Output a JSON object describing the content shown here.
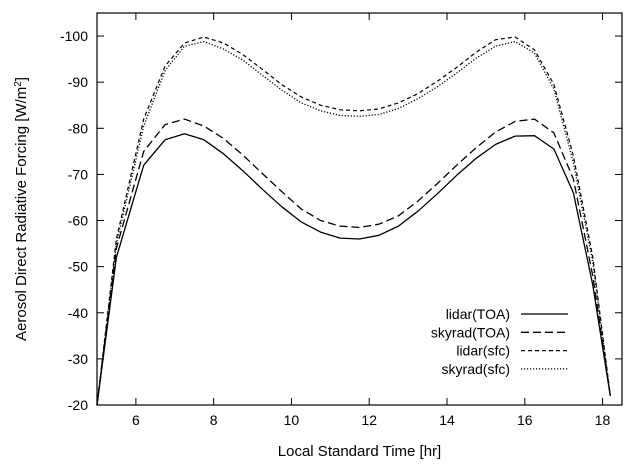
{
  "chart_data": {
    "type": "line",
    "title": "",
    "xlabel": "Local Standard Time [hr]",
    "ylabel": "Aerosol Direct Radiative Forcing [W/m",
    "ylabel_superscript": "2",
    "ylabel_suffix": "]",
    "xlim": [
      5,
      18.5
    ],
    "ylim": [
      -20,
      -105
    ],
    "x_ticks": [
      6,
      8,
      10,
      12,
      14,
      16,
      18
    ],
    "x_tick_labels": [
      "6",
      "8",
      "10",
      "12",
      "14",
      "16",
      "18"
    ],
    "y_ticks": [
      -20,
      -30,
      -40,
      -50,
      -60,
      -70,
      -80,
      -90,
      -100
    ],
    "y_tick_labels": [
      "-20",
      "-30",
      "-40",
      "-50",
      "-60",
      "-70",
      "-80",
      "-90",
      "-100"
    ],
    "legend_position": "bottom-right",
    "grid": false,
    "series": [
      {
        "name": "lidar(TOA)",
        "dash": "solid",
        "x": [
          5.0,
          5.5,
          6.2,
          6.75,
          7.25,
          7.75,
          8.25,
          8.75,
          9.25,
          9.75,
          10.25,
          10.75,
          11.25,
          11.75,
          12.25,
          12.75,
          13.25,
          13.75,
          14.25,
          14.75,
          15.25,
          15.75,
          16.25,
          16.75,
          17.25,
          17.75,
          18.2
        ],
        "y": [
          -20,
          -52,
          -72,
          -77.5,
          -78.8,
          -77.5,
          -74.5,
          -70.8,
          -66.8,
          -63,
          -59.7,
          -57.5,
          -56.2,
          -56,
          -56.8,
          -58.8,
          -62,
          -65.8,
          -69.8,
          -73.5,
          -76.5,
          -78.3,
          -78.4,
          -75.5,
          -66,
          -46,
          -22
        ]
      },
      {
        "name": "skyrad(TOA)",
        "dash": "long-dash",
        "x": [
          5.0,
          5.5,
          6.2,
          6.75,
          7.25,
          7.75,
          8.25,
          8.75,
          9.25,
          9.75,
          10.25,
          10.75,
          11.25,
          11.75,
          12.25,
          12.75,
          13.25,
          13.75,
          14.25,
          14.75,
          15.25,
          15.75,
          16.25,
          16.75,
          17.25,
          17.75,
          18.2
        ],
        "y": [
          -20,
          -54,
          -75,
          -80.8,
          -82,
          -80.5,
          -77.8,
          -74.2,
          -70.2,
          -66.3,
          -62.5,
          -60,
          -58.8,
          -58.5,
          -59.2,
          -61,
          -64.2,
          -68,
          -72,
          -75.8,
          -79.2,
          -81.5,
          -82,
          -79,
          -69,
          -48,
          -22
        ]
      },
      {
        "name": "lidar(sfc)",
        "dash": "short-dash",
        "x": [
          5.0,
          5.5,
          6.2,
          6.75,
          7.25,
          7.75,
          8.25,
          8.75,
          9.25,
          9.75,
          10.25,
          10.75,
          11.25,
          11.75,
          12.25,
          12.75,
          13.25,
          13.75,
          14.25,
          14.75,
          15.25,
          15.75,
          16.25,
          16.75,
          17.25,
          17.75,
          18.2
        ],
        "y": [
          -20,
          -56,
          -82,
          -93.5,
          -98.5,
          -99.8,
          -98.5,
          -96,
          -92.8,
          -89.5,
          -86.8,
          -85,
          -84,
          -83.8,
          -84.2,
          -85.5,
          -87.5,
          -90.2,
          -93.2,
          -96.5,
          -99.2,
          -99.8,
          -97,
          -89.5,
          -74,
          -52,
          -22
        ]
      },
      {
        "name": "skyrad(sfc)",
        "dash": "dotted",
        "x": [
          5.0,
          5.5,
          6.2,
          6.75,
          7.25,
          7.75,
          8.25,
          8.75,
          9.25,
          9.75,
          10.25,
          10.75,
          11.25,
          11.75,
          12.25,
          12.75,
          13.25,
          13.75,
          14.25,
          14.75,
          15.25,
          15.75,
          16.25,
          16.75,
          17.25,
          17.75,
          18.2
        ],
        "y": [
          -20,
          -55,
          -80.5,
          -92.5,
          -97.8,
          -98.8,
          -97.2,
          -94.8,
          -91.5,
          -88.3,
          -85.5,
          -83.8,
          -82.8,
          -82.6,
          -83,
          -84.3,
          -86.4,
          -89,
          -92,
          -95.2,
          -97.8,
          -98.8,
          -96.3,
          -88.5,
          -72.5,
          -51,
          -22
        ]
      }
    ]
  }
}
